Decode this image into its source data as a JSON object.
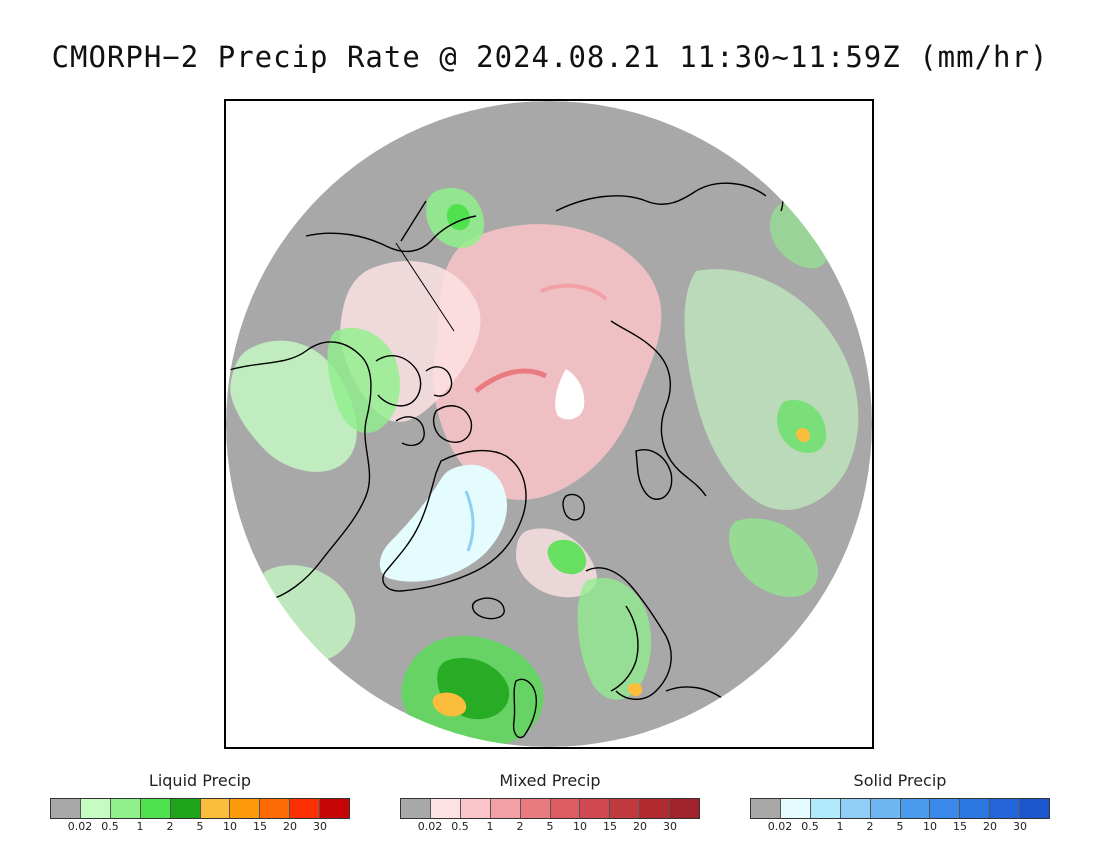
{
  "title": "CMORPH−2 Precip Rate @ 2024.08.21 11:30~11:59Z (mm/hr)",
  "map": {
    "projection": "polar stereographic (north pole)",
    "no_precip_color": "#a8a8a8",
    "background_color": "#ffffff",
    "coastline_color": "#000000"
  },
  "legends": [
    {
      "title": "Liquid Precip",
      "colors": [
        "#a8a8a8",
        "#c6fcc4",
        "#8ff08c",
        "#50e24e",
        "#1ea51a",
        "#fcbc3c",
        "#fc9a0a",
        "#fc6a06",
        "#fc3004",
        "#c60606"
      ],
      "ticks": [
        "0.02",
        "0.5",
        "1",
        "2",
        "5",
        "10",
        "15",
        "20",
        "30"
      ]
    },
    {
      "title": "Mixed Precip",
      "colors": [
        "#a8a8a8",
        "#fde2e4",
        "#fac4c8",
        "#f2a0a6",
        "#e87a80",
        "#dd5c62",
        "#d04850",
        "#c03a40",
        "#b02a30",
        "#a0222a"
      ],
      "ticks": [
        "0.02",
        "0.5",
        "1",
        "2",
        "5",
        "10",
        "15",
        "20",
        "30"
      ]
    },
    {
      "title": "Solid Precip",
      "colors": [
        "#a8a8a8",
        "#e4fcfe",
        "#b0eafa",
        "#90cef6",
        "#6eb6f2",
        "#4a9aee",
        "#3a88ea",
        "#2c76e2",
        "#2466da",
        "#1c56cc"
      ],
      "ticks": [
        "0.02",
        "0.5",
        "1",
        "2",
        "5",
        "10",
        "15",
        "20",
        "30"
      ]
    }
  ]
}
